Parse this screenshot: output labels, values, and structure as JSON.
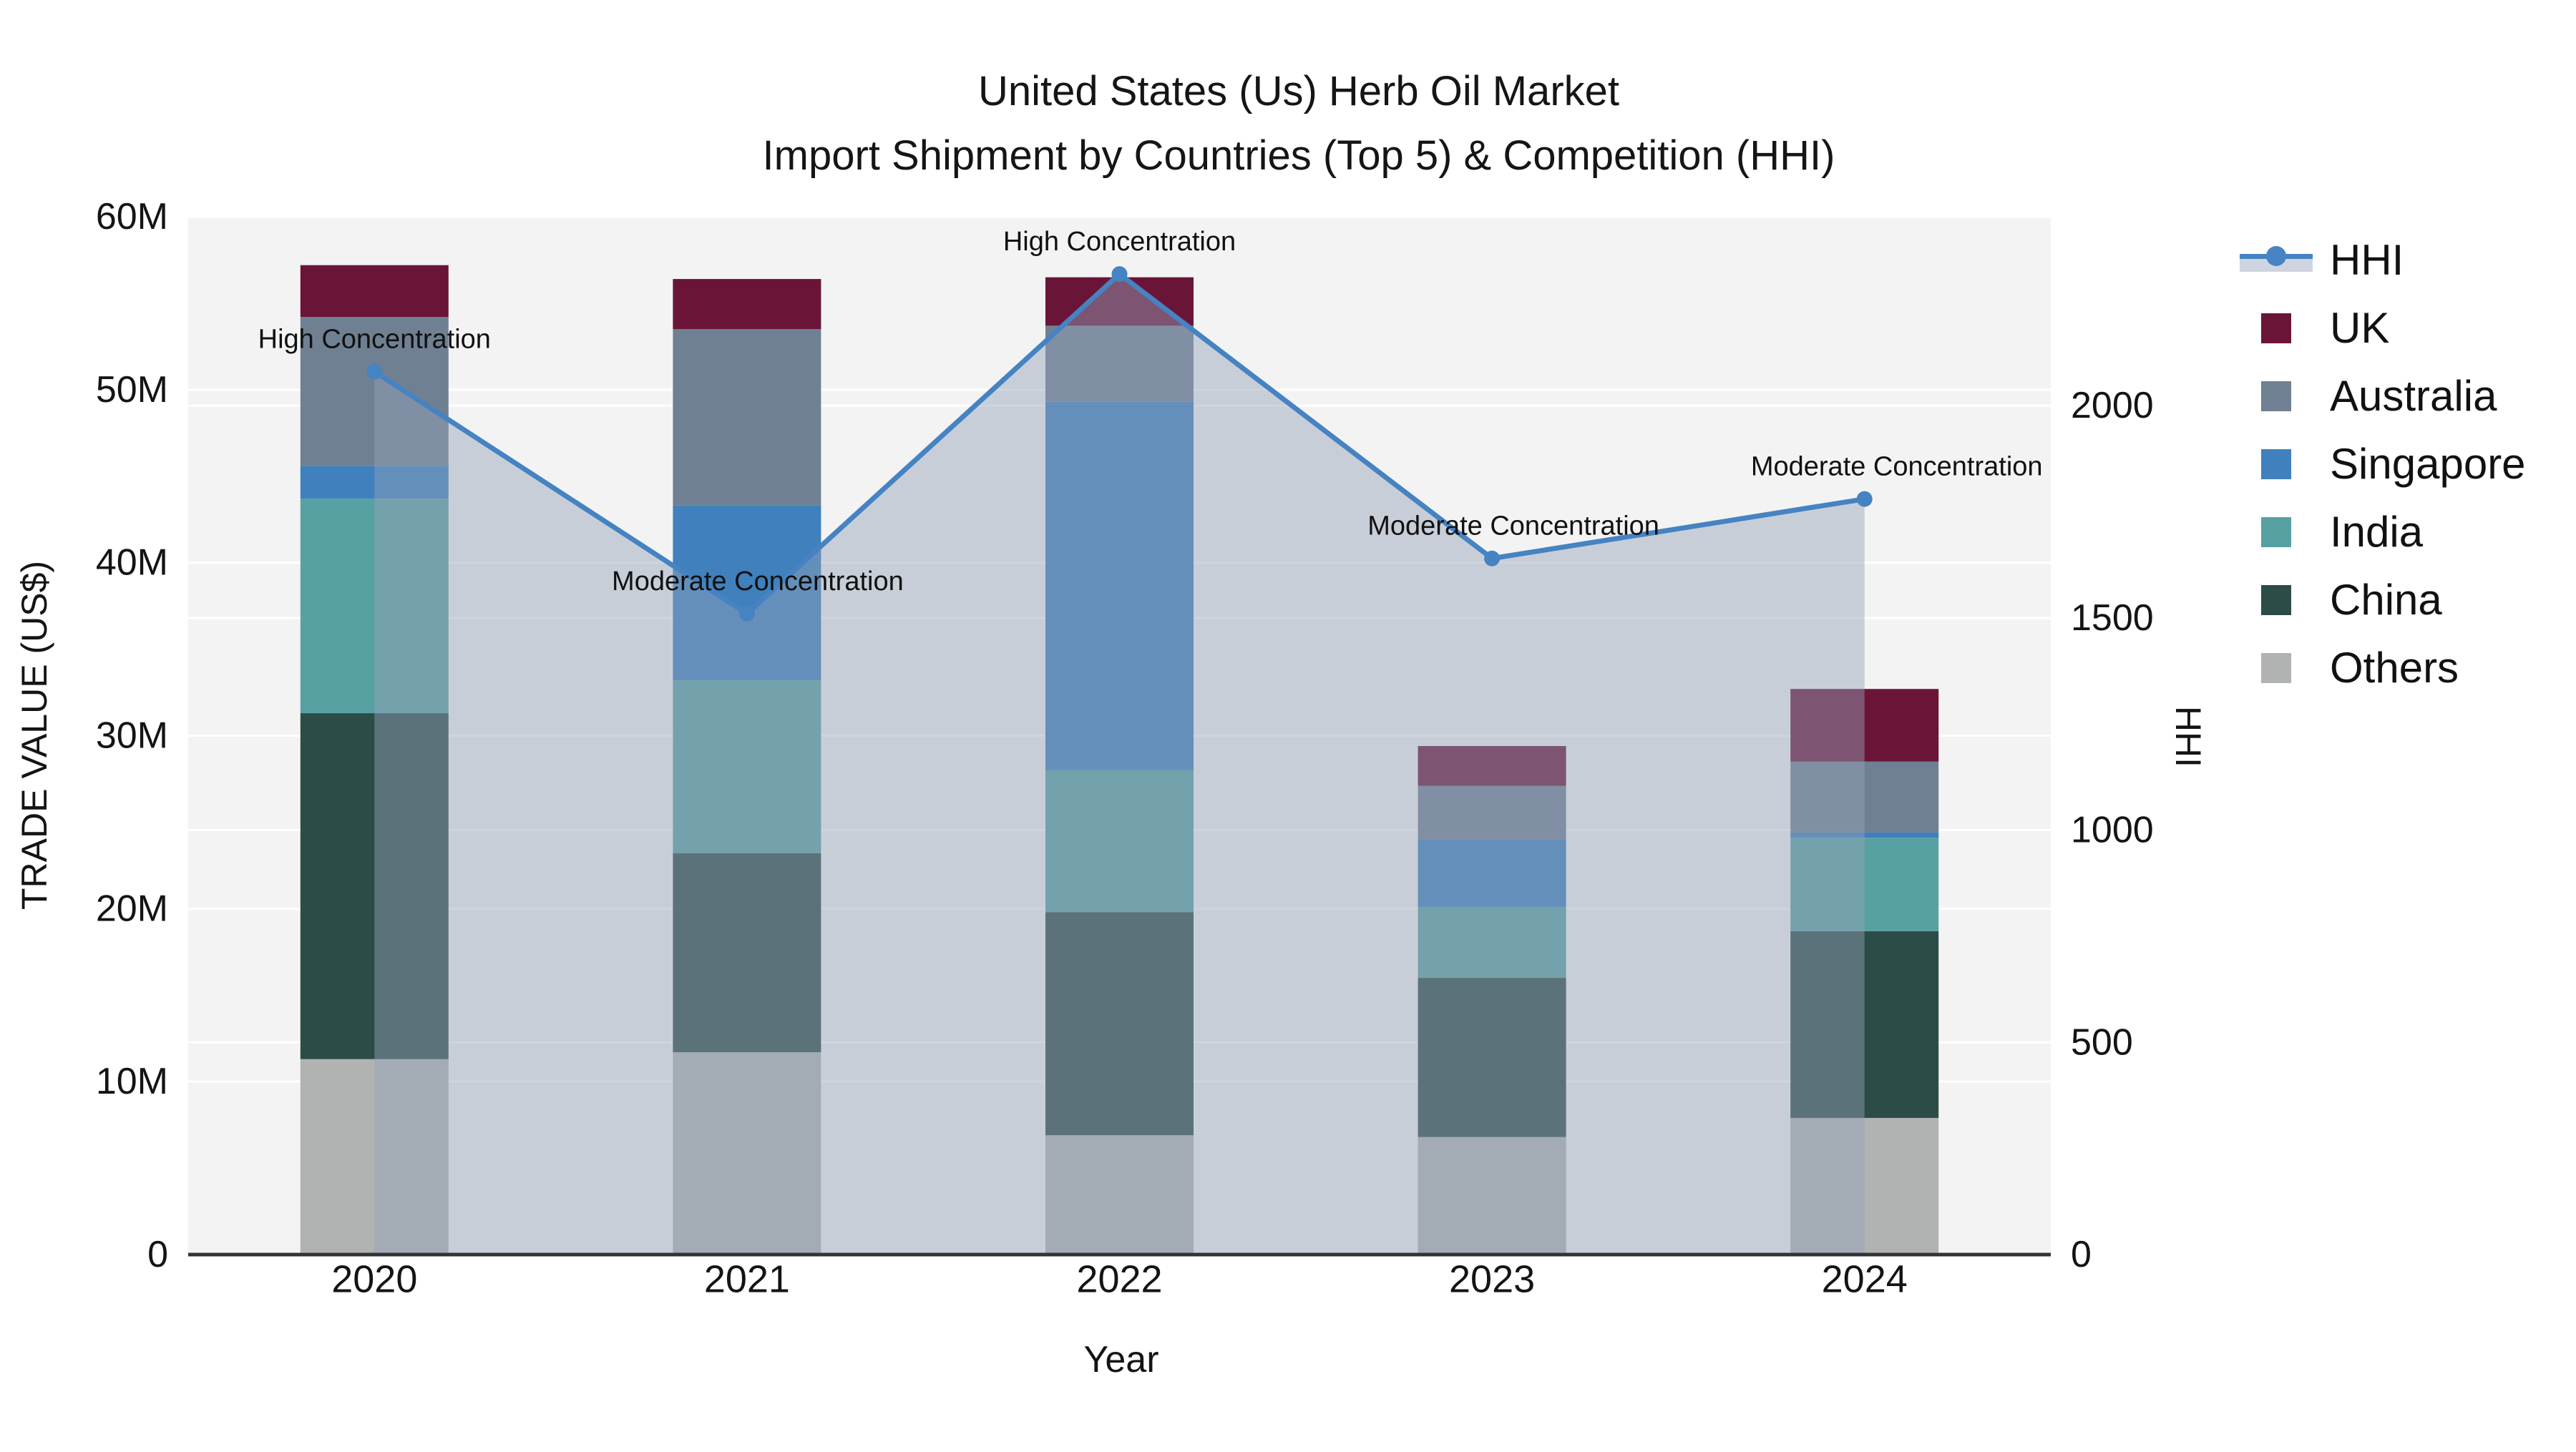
{
  "title": {
    "line1": "United States (Us) Herb Oil Market",
    "line2": "Import Shipment by Countries (Top 5) & Competition (HHI)"
  },
  "axes": {
    "x_label": "Year",
    "y_left_label": "TRADE VALUE (US$)",
    "y_right_label": "HHI",
    "y_left_ticks": [
      "0",
      "10M",
      "20M",
      "30M",
      "40M",
      "50M",
      "60M"
    ],
    "y_right_ticks": [
      "0",
      "500",
      "1000",
      "1500",
      "2000"
    ]
  },
  "legend": {
    "items": [
      {
        "label": "HHI",
        "type": "line",
        "color": "#4583c2"
      },
      {
        "label": "UK",
        "type": "patch",
        "color": "#6a1537"
      },
      {
        "label": "Australia",
        "type": "patch",
        "color": "#6f8092"
      },
      {
        "label": "Singapore",
        "type": "patch",
        "color": "#3f80bd"
      },
      {
        "label": "India",
        "type": "patch",
        "color": "#58a1a3"
      },
      {
        "label": "China",
        "type": "patch",
        "color": "#2c4c47"
      },
      {
        "label": "Others",
        "type": "patch",
        "color": "#b0b3b1"
      }
    ]
  },
  "chart_data": {
    "type": "bar",
    "subtype": "stacked bars with dual-axis HHI line and shaded area",
    "categories": [
      "2020",
      "2021",
      "2022",
      "2023",
      "2024"
    ],
    "unit": "million US$",
    "series": [
      {
        "name": "Others",
        "color": "#b0b3b1",
        "values": [
          11.3,
          11.7,
          6.9,
          6.8,
          7.9
        ]
      },
      {
        "name": "China",
        "color": "#2c4c47",
        "values": [
          20.0,
          11.5,
          12.9,
          9.2,
          10.8
        ]
      },
      {
        "name": "India",
        "color": "#58a1a3",
        "values": [
          12.4,
          10.0,
          8.2,
          4.1,
          5.4
        ]
      },
      {
        "name": "Singapore",
        "color": "#3f80bd",
        "values": [
          1.9,
          10.1,
          21.3,
          3.9,
          0.3
        ]
      },
      {
        "name": "Australia",
        "color": "#6f8092",
        "values": [
          8.6,
          10.2,
          4.4,
          3.1,
          4.1
        ]
      },
      {
        "name": "UK",
        "color": "#6a1537",
        "values": [
          3.0,
          2.9,
          2.8,
          2.3,
          4.2
        ]
      }
    ],
    "line_series": {
      "name": "HHI",
      "color": "#4583c2",
      "area_color": "rgba(148,161,185,0.45)",
      "values": [
        2080,
        1510,
        2310,
        1640,
        1780
      ],
      "annotations": [
        "High Concentration",
        "Moderate Concentration",
        "High Concentration",
        "Moderate Concentration",
        "Moderate Concentration"
      ],
      "annotation_dx": [
        0,
        15,
        0,
        30,
        45
      ]
    },
    "title": "United States (Us) Herb Oil Market — Import Shipment by Countries (Top 5) & Competition (HHI)",
    "xlabel": "Year",
    "ylabel_left": "TRADE VALUE (US$)",
    "ylabel_right": "HHI",
    "y_left": {
      "min": 0,
      "max": 60,
      "tick_step": 10,
      "tick_suffix": "M"
    },
    "y_right": {
      "min": 0,
      "max": 2445,
      "ticks": [
        0,
        500,
        1000,
        1500,
        2000
      ]
    },
    "grid": "horizontal white gridlines for both axes on light gray plot background",
    "legend_position": "right"
  },
  "colors": {
    "page_bg": "#ffffff",
    "plot_bg": "#f3f3f3",
    "gridline": "#ffffff",
    "axis_line": "#333333",
    "text": "#141414"
  }
}
